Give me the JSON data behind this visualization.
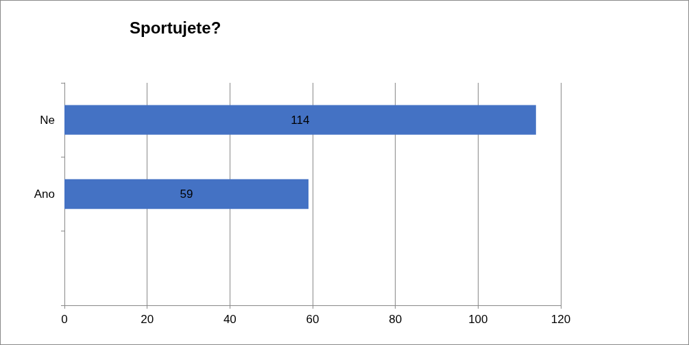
{
  "chart_data": {
    "type": "bar",
    "orientation": "horizontal",
    "title": "Sportujete?",
    "categories": [
      "Ne",
      "Ano",
      null
    ],
    "values": [
      114,
      59,
      null
    ],
    "color": "#4472c4",
    "xlim": [
      0,
      120
    ],
    "xticks": [
      0,
      20,
      40,
      60,
      80,
      100,
      120
    ],
    "grid": "x",
    "data_labels": true
  }
}
